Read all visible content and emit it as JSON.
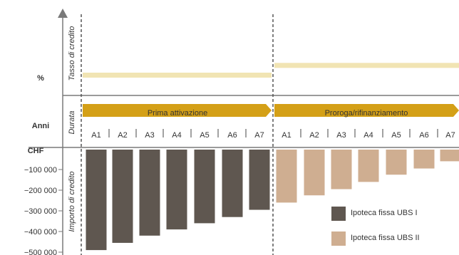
{
  "row_labels": {
    "rate": "%",
    "years": "Anni",
    "amount": "CHF"
  },
  "vertical_labels": {
    "rate": "Tasso di credito",
    "duration": "Durata",
    "amount": "Importo di credito"
  },
  "phases": [
    {
      "label": "Prima attivazione"
    },
    {
      "label": "Proroga/rifinanziamento"
    }
  ],
  "colors": {
    "phase_arrow": "#d4a017",
    "rate_line": "#f1e4b3",
    "series_1": "#5f5750",
    "series_2": "#cfae91",
    "axis": "#7a7a7a",
    "text": "#333333"
  },
  "chart_data": {
    "type": "bar",
    "categories": [
      "A1",
      "A2",
      "A3",
      "A4",
      "A5",
      "A6",
      "A7",
      "A1",
      "A2",
      "A3",
      "A4",
      "A5",
      "A6",
      "A7"
    ],
    "yticks": [
      "−100 000",
      "−200 000",
      "−300 000",
      "−400 000",
      "−500 000"
    ],
    "ytick_values": [
      -100000,
      -200000,
      -300000,
      -400000,
      -500000
    ],
    "ylim": [
      -500000,
      0
    ],
    "series": [
      {
        "name": "Ipoteca fissa UBS I",
        "values": [
          -490000,
          -455000,
          -420000,
          -390000,
          -360000,
          -330000,
          -295000,
          null,
          null,
          null,
          null,
          null,
          null,
          null
        ]
      },
      {
        "name": "Ipoteca fissa UBS II",
        "values": [
          null,
          null,
          null,
          null,
          null,
          null,
          null,
          -260000,
          -225000,
          -195000,
          -160000,
          -125000,
          -95000,
          -60000
        ]
      }
    ],
    "rate_levels": [
      {
        "phase": "Prima attivazione",
        "level": 0.25
      },
      {
        "phase": "Proroga/rifinanziamento",
        "level": 0.37
      }
    ],
    "legend_position": "bottom-right"
  }
}
